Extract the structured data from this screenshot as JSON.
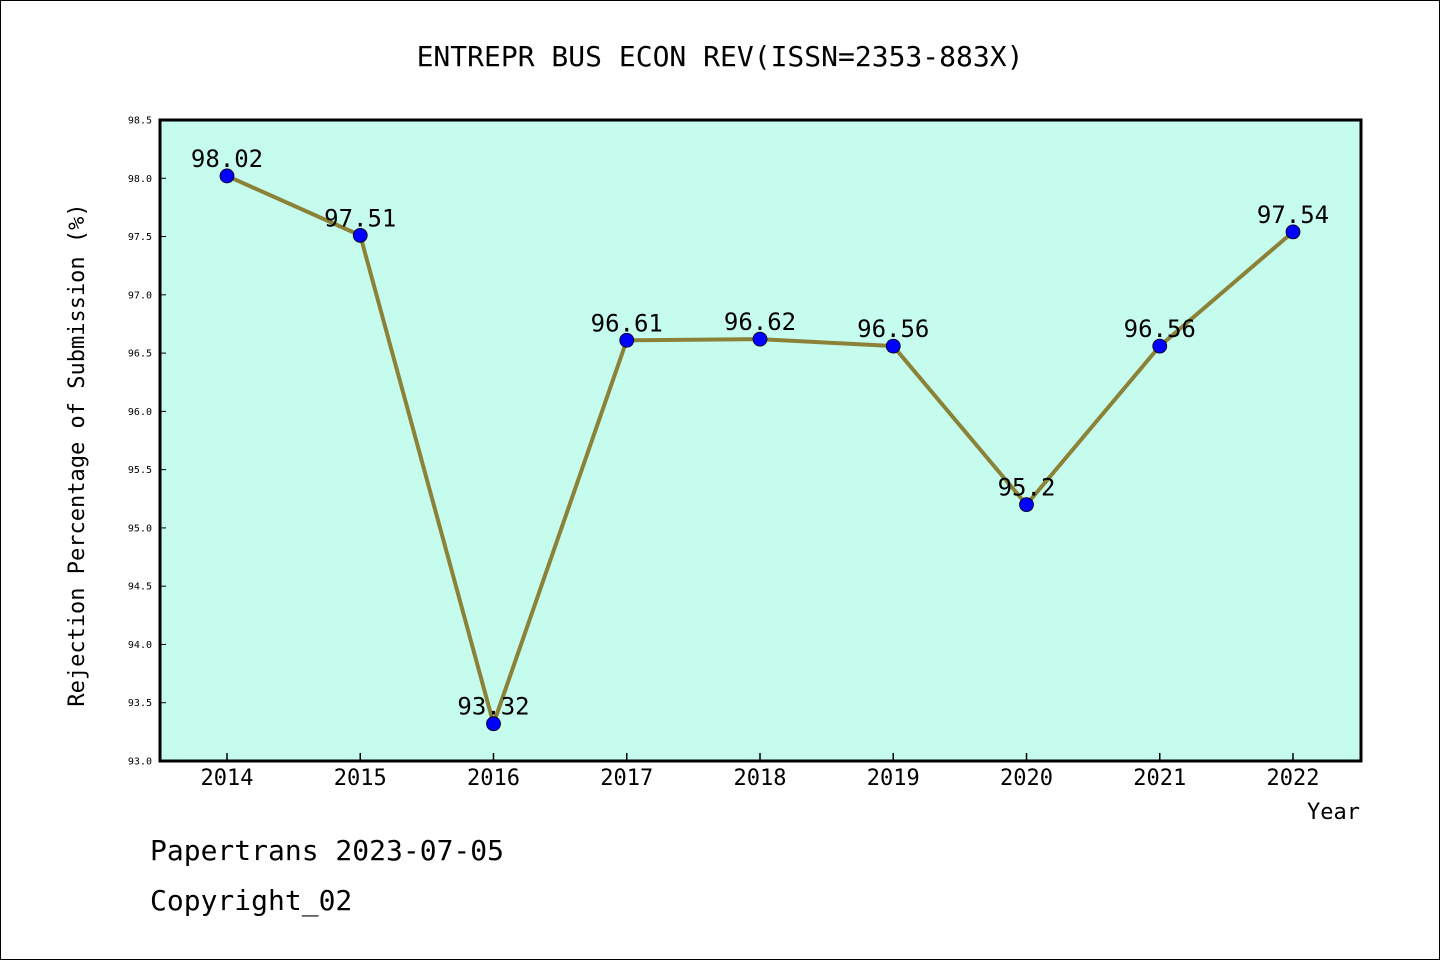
{
  "chart_data": {
    "type": "line",
    "title": "ENTREPR BUS ECON REV(ISSN=2353-883X)",
    "xlabel": "Year",
    "ylabel": "Rejection Percentage of Submission (%)",
    "categories": [
      "2014",
      "2015",
      "2016",
      "2017",
      "2018",
      "2019",
      "2020",
      "2021",
      "2022"
    ],
    "series": [
      {
        "values": [
          98.02,
          97.51,
          93.32,
          96.61,
          96.62,
          96.56,
          95.2,
          96.56,
          97.54
        ],
        "labels": [
          "98.02",
          "97.51",
          "93.32",
          "96.61",
          "96.62",
          "96.56",
          "95.2",
          "96.56",
          "97.54"
        ]
      }
    ],
    "ylim": [
      93.0,
      98.5
    ],
    "yticks": [
      "93.0",
      "93.5",
      "94.0",
      "94.5",
      "95.0",
      "95.5",
      "96.0",
      "96.5",
      "97.0",
      "97.5",
      "98.0",
      "98.5"
    ],
    "grid": false,
    "colors": {
      "plot_background": "#c6fcee",
      "line": "#8b8238",
      "marker": "#0000ff"
    }
  },
  "footer": {
    "line1": "Papertrans 2023-07-05",
    "line2": "Copyright_02"
  }
}
